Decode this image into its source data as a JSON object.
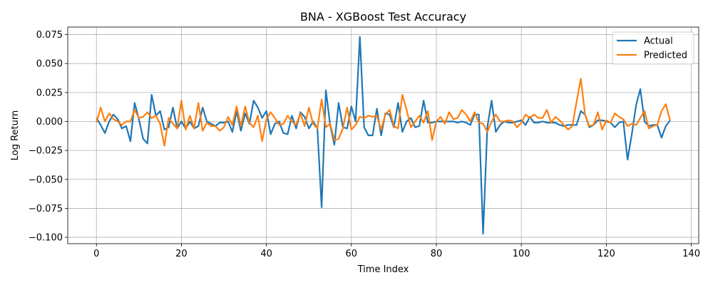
{
  "chart_data": {
    "type": "line",
    "title": "BNA - XGBoost Test Accuracy",
    "xlabel": "Time Index",
    "ylabel": "Log Return",
    "xlim": [
      -6.75,
      141.75
    ],
    "ylim": [
      -0.1055,
      0.0815
    ],
    "xticks": [
      0,
      20,
      40,
      60,
      80,
      100,
      120,
      140
    ],
    "xtick_labels": [
      "0",
      "20",
      "40",
      "60",
      "80",
      "100",
      "120",
      "140"
    ],
    "yticks": [
      -0.1,
      -0.075,
      -0.05,
      -0.025,
      0.0,
      0.025,
      0.05,
      0.075
    ],
    "ytick_labels": [
      "−0.100",
      "−0.075",
      "−0.050",
      "−0.025",
      "0.000",
      "0.025",
      "0.050",
      "0.075"
    ],
    "grid": true,
    "legend_position": "top-right",
    "series": [
      {
        "name": "Actual",
        "color": "#1f77b4",
        "x": [
          0,
          1,
          2,
          3,
          4,
          5,
          6,
          7,
          8,
          9,
          10,
          11,
          12,
          13,
          14,
          15,
          16,
          17,
          18,
          19,
          20,
          21,
          22,
          23,
          24,
          25,
          26,
          27,
          28,
          29,
          30,
          31,
          32,
          33,
          34,
          35,
          36,
          37,
          38,
          39,
          40,
          41,
          42,
          43,
          44,
          45,
          46,
          47,
          48,
          49,
          50,
          51,
          52,
          53,
          54,
          55,
          56,
          57,
          58,
          59,
          60,
          61,
          62,
          63,
          64,
          65,
          66,
          67,
          68,
          69,
          70,
          71,
          72,
          73,
          74,
          75,
          76,
          77,
          78,
          79,
          80,
          81,
          82,
          83,
          84,
          85,
          86,
          87,
          88,
          89,
          90,
          91,
          92,
          93,
          94,
          95,
          96,
          97,
          98,
          99,
          100,
          101,
          102,
          103,
          104,
          105,
          106,
          107,
          108,
          109,
          110,
          111,
          112,
          113,
          114,
          115,
          116,
          117,
          118,
          119,
          120,
          121,
          122,
          123,
          124,
          125,
          126,
          127,
          128,
          129,
          130,
          131,
          132,
          133,
          134,
          135
        ],
        "values": [
          0.003,
          -0.003,
          -0.01,
          0.0,
          0.006,
          0.002,
          -0.006,
          -0.004,
          -0.017,
          0.016,
          0.002,
          -0.015,
          -0.019,
          0.023,
          0.005,
          0.009,
          -0.007,
          -0.005,
          0.012,
          -0.006,
          0.0,
          -0.006,
          0.0,
          -0.006,
          -0.004,
          0.012,
          0.0,
          -0.002,
          -0.004,
          -0.001,
          -0.001,
          0.0,
          -0.009,
          0.009,
          -0.008,
          0.007,
          -0.002,
          0.018,
          0.012,
          0.003,
          0.009,
          -0.011,
          -0.002,
          0.0,
          -0.01,
          -0.011,
          0.005,
          -0.006,
          0.008,
          0.004,
          -0.006,
          0.0,
          -0.006,
          -0.074,
          0.027,
          -0.003,
          -0.02,
          0.016,
          -0.005,
          -0.006,
          0.013,
          0.0,
          0.073,
          -0.005,
          -0.012,
          -0.012,
          0.011,
          -0.012,
          0.007,
          0.006,
          -0.005,
          0.016,
          -0.009,
          0.0,
          0.003,
          -0.005,
          -0.004,
          0.018,
          -0.001,
          -0.001,
          0.0,
          0.0,
          0.0,
          0.0,
          0.0,
          -0.001,
          0.0,
          -0.001,
          -0.003,
          0.006,
          0.006,
          -0.097,
          -0.005,
          0.018,
          -0.009,
          -0.003,
          0.0,
          -0.001,
          -0.001,
          0.0,
          0.001,
          -0.003,
          0.004,
          -0.001,
          -0.001,
          0.0,
          -0.001,
          -0.001,
          -0.001,
          -0.003,
          -0.004,
          -0.003,
          -0.003,
          -0.003,
          0.009,
          0.006,
          -0.005,
          -0.003,
          0.001,
          0.001,
          0.0,
          -0.001,
          -0.005,
          -0.001,
          0.0,
          -0.033,
          -0.011,
          0.014,
          0.028,
          0.0,
          -0.004,
          -0.003,
          -0.003,
          -0.014,
          -0.004,
          0.001
        ]
      },
      {
        "name": "Predicted",
        "color": "#ff7f0e",
        "x": [
          0,
          1,
          2,
          3,
          4,
          5,
          6,
          7,
          8,
          9,
          10,
          11,
          12,
          13,
          14,
          15,
          16,
          17,
          18,
          19,
          20,
          21,
          22,
          23,
          24,
          25,
          26,
          27,
          28,
          29,
          30,
          31,
          32,
          33,
          34,
          35,
          36,
          37,
          38,
          39,
          40,
          41,
          42,
          43,
          44,
          45,
          46,
          47,
          48,
          49,
          50,
          51,
          52,
          53,
          54,
          55,
          56,
          57,
          58,
          59,
          60,
          61,
          62,
          63,
          64,
          65,
          66,
          67,
          68,
          69,
          70,
          71,
          72,
          73,
          74,
          75,
          76,
          77,
          78,
          79,
          80,
          81,
          82,
          83,
          84,
          85,
          86,
          87,
          88,
          89,
          90,
          91,
          92,
          93,
          94,
          95,
          96,
          97,
          98,
          99,
          100,
          101,
          102,
          103,
          104,
          105,
          106,
          107,
          108,
          109,
          110,
          111,
          112,
          113,
          114,
          115,
          116,
          117,
          118,
          119,
          120,
          121,
          122,
          123,
          124,
          125,
          126,
          127,
          128,
          129,
          130,
          131,
          132,
          133,
          134,
          135
        ],
        "values": [
          -0.001,
          0.012,
          0.0,
          0.007,
          0.002,
          0.0,
          -0.003,
          0.0,
          0.0,
          0.01,
          0.003,
          0.004,
          0.008,
          0.003,
          0.005,
          -0.002,
          -0.021,
          0.003,
          -0.002,
          -0.006,
          0.018,
          -0.007,
          0.005,
          -0.006,
          0.016,
          -0.008,
          -0.001,
          -0.004,
          -0.004,
          -0.008,
          -0.005,
          0.004,
          -0.003,
          0.013,
          -0.004,
          0.013,
          -0.001,
          -0.005,
          0.005,
          -0.017,
          0.002,
          0.008,
          0.003,
          -0.003,
          -0.002,
          0.005,
          0.0,
          -0.003,
          0.007,
          -0.004,
          0.012,
          -0.002,
          -0.006,
          0.019,
          -0.005,
          -0.002,
          -0.016,
          -0.015,
          -0.006,
          0.012,
          -0.007,
          -0.003,
          0.004,
          0.003,
          0.005,
          0.004,
          0.005,
          -0.007,
          0.006,
          0.01,
          -0.004,
          -0.006,
          0.023,
          0.01,
          -0.005,
          0.0,
          0.005,
          -0.001,
          0.009,
          -0.016,
          0.0,
          0.004,
          -0.002,
          0.008,
          0.002,
          0.003,
          0.01,
          0.006,
          0.0,
          0.008,
          -0.001,
          -0.002,
          -0.009,
          0.0,
          0.006,
          0.0,
          0.0,
          0.001,
          0.0,
          -0.005,
          -0.001,
          0.006,
          0.003,
          0.006,
          0.003,
          0.003,
          0.01,
          -0.001,
          0.004,
          0.001,
          -0.003,
          -0.007,
          -0.004,
          0.017,
          0.037,
          0.006,
          -0.004,
          -0.003,
          0.008,
          -0.007,
          0.001,
          -0.001,
          0.007,
          0.004,
          0.002,
          -0.004,
          -0.002,
          -0.003,
          0.003,
          0.009,
          -0.006,
          -0.004,
          -0.003,
          0.009,
          0.015,
          0.001
        ]
      }
    ]
  }
}
